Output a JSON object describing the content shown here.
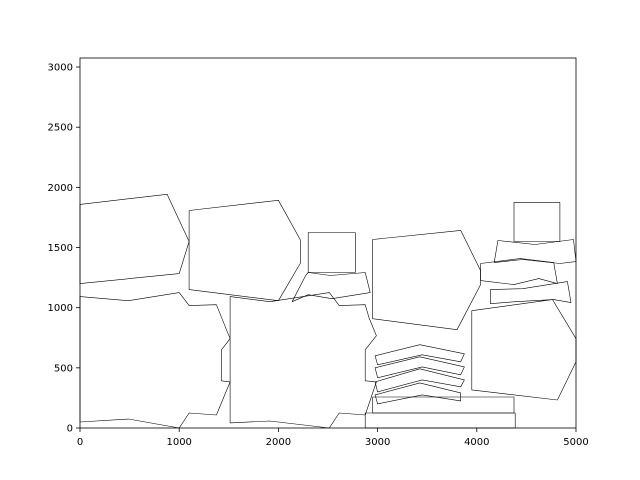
{
  "chart_data": {
    "type": "line",
    "title": "",
    "xlabel": "",
    "ylabel": "",
    "xlim": [
      0,
      5000
    ],
    "ylim": [
      0,
      3075
    ],
    "xticks": [
      0,
      1000,
      2000,
      3000,
      4000,
      5000
    ],
    "yticks": [
      0,
      500,
      1000,
      1500,
      2000,
      2500,
      3000
    ],
    "xtick_labels": [
      "0",
      "1000",
      "2000",
      "3000",
      "4000",
      "5000"
    ],
    "ytick_labels": [
      "0",
      "500",
      "1000",
      "1500",
      "2000",
      "2500",
      "3000"
    ],
    "grid": false,
    "stroke_color": "#000000",
    "polygons": [
      [
        [
          0,
          1858
        ],
        [
          878,
          1942
        ],
        [
          1100,
          1550
        ],
        [
          1000,
          1283
        ],
        [
          0,
          1200
        ]
      ],
      [
        [
          1100,
          1808
        ],
        [
          2000,
          1892
        ],
        [
          2225,
          1558
        ],
        [
          2225,
          1375
        ],
        [
          2000,
          1058
        ],
        [
          1100,
          1150
        ]
      ],
      [
        [
          2300,
          1625
        ],
        [
          2775,
          1625
        ],
        [
          2775,
          1292
        ],
        [
          2300,
          1292
        ]
      ],
      [
        [
          2138,
          1050
        ],
        [
          2300,
          1108
        ],
        [
          2538,
          1075
        ],
        [
          2925,
          1125
        ],
        [
          2875,
          1292
        ],
        [
          2525,
          1267
        ],
        [
          2300,
          1292
        ],
        [
          2275,
          1267
        ]
      ],
      [
        [
          2950,
          1567
        ],
        [
          3838,
          1642
        ],
        [
          4038,
          1308
        ],
        [
          4038,
          1192
        ],
        [
          3800,
          817
        ],
        [
          2950,
          908
        ]
      ],
      [
        [
          4375,
          1875
        ],
        [
          4838,
          1875
        ],
        [
          4838,
          1550
        ],
        [
          4375,
          1550
        ]
      ],
      [
        [
          4213,
          1558
        ],
        [
          4587,
          1525
        ],
        [
          4975,
          1567
        ],
        [
          5000,
          1383
        ],
        [
          4838,
          1367
        ],
        [
          4462,
          1400
        ],
        [
          4175,
          1375
        ]
      ],
      [
        [
          4038,
          1367
        ],
        [
          4438,
          1408
        ],
        [
          4775,
          1375
        ],
        [
          4813,
          1200
        ],
        [
          4625,
          1242
        ],
        [
          4375,
          1192
        ],
        [
          4038,
          1225
        ]
      ],
      [
        [
          4138,
          1150
        ],
        [
          4463,
          1158
        ],
        [
          4913,
          1217
        ],
        [
          4950,
          1042
        ],
        [
          4775,
          1067
        ],
        [
          4387,
          1050
        ],
        [
          4138,
          1033
        ]
      ],
      [
        [
          3950,
          975
        ],
        [
          4763,
          1067
        ],
        [
          5000,
          742
        ],
        [
          5000,
          550
        ],
        [
          4813,
          233
        ],
        [
          3950,
          317
        ]
      ],
      [
        [
          0,
          1092
        ],
        [
          488,
          1058
        ],
        [
          1000,
          1125
        ],
        [
          1100,
          1017
        ],
        [
          1375,
          1025
        ],
        [
          1513,
          742
        ],
        [
          1425,
          650
        ],
        [
          1425,
          392
        ],
        [
          1513,
          383
        ],
        [
          1375,
          108
        ],
        [
          1100,
          125
        ],
        [
          1000,
          0
        ],
        [
          488,
          75
        ],
        [
          0,
          50
        ]
      ],
      [
        [
          1513,
          1092
        ],
        [
          1913,
          1050
        ],
        [
          2513,
          1125
        ],
        [
          2613,
          1017
        ],
        [
          2875,
          1025
        ],
        [
          2913,
          917
        ],
        [
          2988,
          767
        ],
        [
          2875,
          650
        ],
        [
          2875,
          392
        ],
        [
          2988,
          383
        ],
        [
          2875,
          108
        ],
        [
          2613,
          125
        ],
        [
          2513,
          0
        ],
        [
          1913,
          58
        ],
        [
          1513,
          42
        ]
      ],
      [
        [
          2975,
          600
        ],
        [
          3425,
          692
        ],
        [
          3875,
          617
        ],
        [
          3838,
          550
        ],
        [
          3450,
          608
        ],
        [
          3000,
          525
        ]
      ],
      [
        [
          2975,
          500
        ],
        [
          3425,
          592
        ],
        [
          3875,
          508
        ],
        [
          3838,
          442
        ],
        [
          3450,
          508
        ],
        [
          3000,
          417
        ]
      ],
      [
        [
          2975,
          383
        ],
        [
          3425,
          492
        ],
        [
          3875,
          400
        ],
        [
          3838,
          342
        ],
        [
          3450,
          400
        ],
        [
          3000,
          300
        ]
      ],
      [
        [
          2975,
          275
        ],
        [
          3425,
          375
        ],
        [
          3838,
          292
        ],
        [
          3838,
          225
        ],
        [
          3450,
          275
        ],
        [
          3000,
          200
        ]
      ],
      [
        [
          2950,
          258
        ],
        [
          4375,
          258
        ],
        [
          4375,
          125
        ],
        [
          2950,
          125
        ]
      ],
      [
        [
          2875,
          125
        ],
        [
          4387,
          125
        ],
        [
          4387,
          0
        ],
        [
          2875,
          0
        ]
      ]
    ]
  }
}
